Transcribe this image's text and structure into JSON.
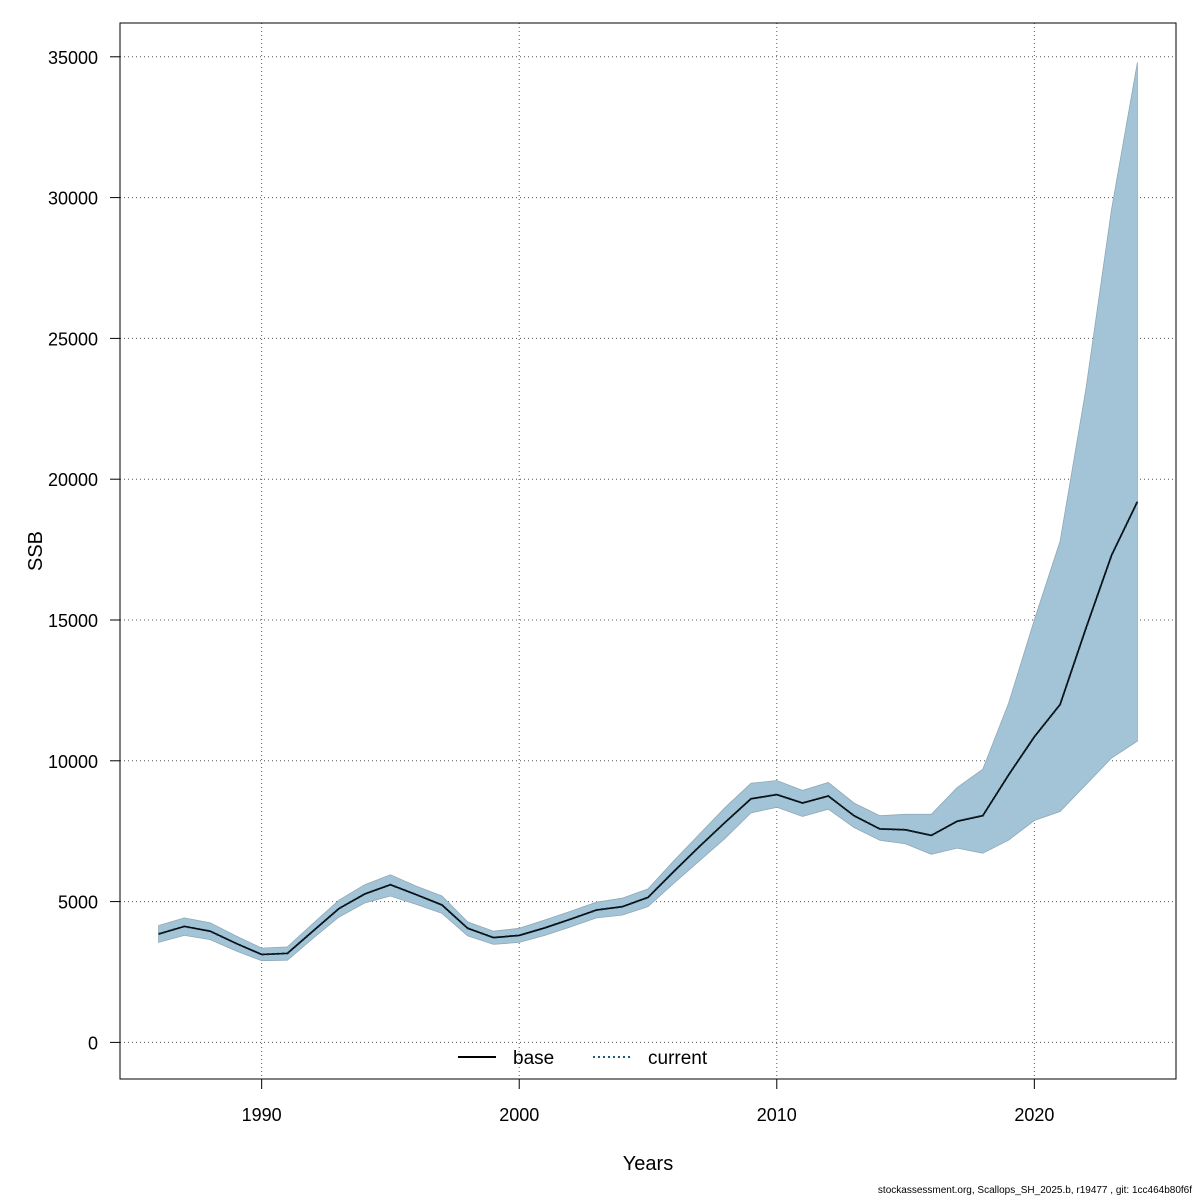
{
  "chart_data": {
    "type": "line",
    "xlabel": "Years",
    "ylabel": "SSB",
    "xlim": [
      1984.5,
      2025.5
    ],
    "ylim": [
      -1300,
      36200
    ],
    "x_ticks": [
      1990,
      2000,
      2010,
      2020
    ],
    "y_ticks": [
      0,
      5000,
      10000,
      15000,
      20000,
      25000,
      30000,
      35000
    ],
    "grid": true,
    "legend_position": "bottom-center",
    "colors": {
      "band": "#a3c4d6",
      "band_edge": "#8fa9b8",
      "base": "#000000",
      "current": "#1f5a7a",
      "grid": "#555555"
    },
    "x": [
      1986,
      1987,
      1988,
      1989,
      1990,
      1991,
      1992,
      1993,
      1994,
      1995,
      1996,
      1997,
      1998,
      1999,
      2000,
      2001,
      2002,
      2003,
      2004,
      2005,
      2006,
      2007,
      2008,
      2009,
      2010,
      2011,
      2012,
      2013,
      2014,
      2015,
      2016,
      2017,
      2018,
      2019,
      2020,
      2021,
      2022,
      2023,
      2024
    ],
    "series": [
      {
        "name": "base",
        "style": "solid",
        "values": [
          3850,
          4120,
          3950,
          3520,
          3120,
          3160,
          3960,
          4750,
          5270,
          5600,
          5250,
          4880,
          4050,
          3720,
          3800,
          4070,
          4380,
          4700,
          4820,
          5150,
          6070,
          6960,
          7820,
          8650,
          8800,
          8500,
          8750,
          8050,
          7580,
          7550,
          7350,
          7850,
          8050,
          9500,
          10850,
          12000,
          14700,
          17300,
          19200
        ]
      },
      {
        "name": "current",
        "style": "dotted",
        "values": [
          3850,
          4120,
          3950,
          3520,
          3120,
          3160,
          3960,
          4750,
          5270,
          5600,
          5250,
          4880,
          4050,
          3720,
          3800,
          4070,
          4380,
          4700,
          4820,
          5150,
          6070,
          6960,
          7820,
          8650,
          8800,
          8500,
          8750,
          8050,
          7580,
          7550,
          7350,
          7850,
          8050,
          9500,
          10850,
          12000,
          14700,
          17300,
          19200
        ]
      }
    ],
    "band": {
      "lower": [
        3550,
        3800,
        3650,
        3250,
        2900,
        2920,
        3700,
        4450,
        4950,
        5200,
        4900,
        4580,
        3780,
        3480,
        3550,
        3800,
        4100,
        4420,
        4520,
        4820,
        5650,
        6450,
        7250,
        8150,
        8350,
        8020,
        8280,
        7630,
        7180,
        7050,
        6680,
        6900,
        6720,
        7180,
        7880,
        8200,
        9150,
        10100,
        10700
      ],
      "upper": [
        4150,
        4420,
        4250,
        3780,
        3350,
        3390,
        4230,
        5050,
        5600,
        5950,
        5550,
        5200,
        4280,
        3950,
        4050,
        4350,
        4660,
        4980,
        5120,
        5450,
        6450,
        7400,
        8350,
        9200,
        9300,
        8950,
        9230,
        8500,
        8050,
        8100,
        8100,
        9050,
        9700,
        12050,
        15000,
        17800,
        23200,
        29600,
        34800
      ]
    }
  },
  "footer": "stockassessment.org, Scallops_SH_2025.b, r19477 , git: 1cc464b80f6f"
}
